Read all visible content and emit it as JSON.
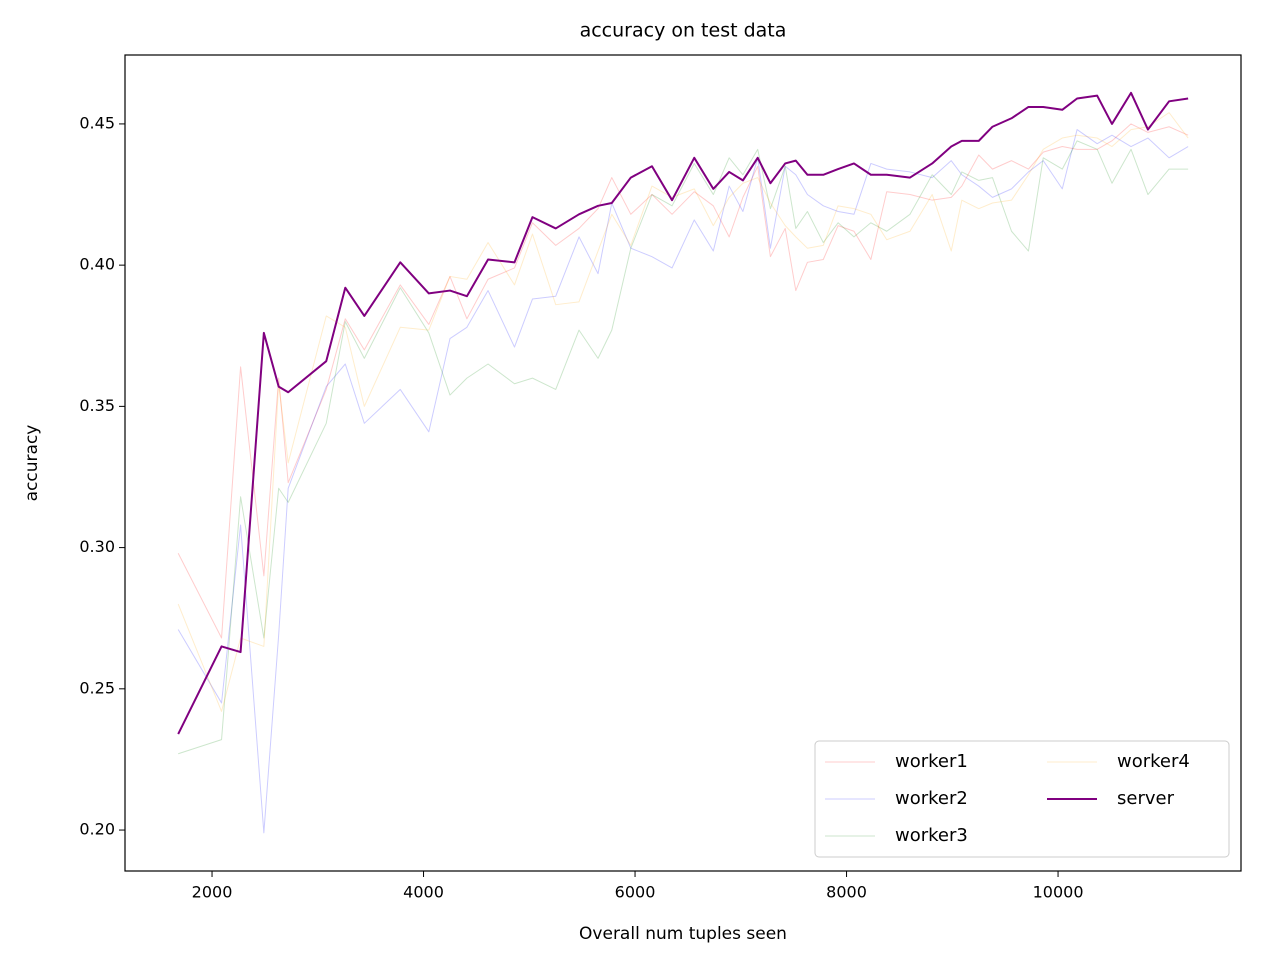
{
  "chart_data": {
    "type": "line",
    "title": "accuracy on test data",
    "x_label": "Overall num tuples seen",
    "y_label": "accuracy",
    "x": [
      1680,
      2090,
      2270,
      2490,
      2630,
      2720,
      3080,
      3260,
      3440,
      3780,
      4050,
      4250,
      4410,
      4610,
      4860,
      5030,
      5250,
      5470,
      5650,
      5780,
      5960,
      6160,
      6350,
      6560,
      6740,
      6890,
      7020,
      7160,
      7280,
      7420,
      7520,
      7630,
      7780,
      7920,
      8070,
      8230,
      8380,
      8600,
      8810,
      8990,
      9090,
      9250,
      9380,
      9560,
      9720,
      9860,
      10040,
      10180,
      10370,
      10510,
      10690,
      10850,
      11050,
      11230
    ],
    "series": [
      {
        "name": "worker1",
        "color": "#ff0000",
        "alpha": 0.2,
        "values": [
          0.298,
          0.268,
          0.364,
          0.29,
          0.36,
          0.323,
          0.356,
          0.381,
          0.37,
          0.393,
          0.379,
          0.396,
          0.381,
          0.395,
          0.399,
          0.415,
          0.407,
          0.413,
          0.42,
          0.431,
          0.418,
          0.425,
          0.418,
          0.426,
          0.421,
          0.41,
          0.424,
          0.435,
          0.403,
          0.413,
          0.391,
          0.401,
          0.402,
          0.414,
          0.412,
          0.402,
          0.426,
          0.425,
          0.423,
          0.424,
          0.428,
          0.439,
          0.434,
          0.437,
          0.434,
          0.44,
          0.442,
          0.441,
          0.441,
          0.444,
          0.45,
          0.447,
          0.449,
          0.446
        ]
      },
      {
        "name": "worker2",
        "color": "#0000ff",
        "alpha": 0.2,
        "values": [
          0.271,
          0.245,
          0.308,
          0.199,
          0.269,
          0.321,
          0.357,
          0.365,
          0.344,
          0.356,
          0.341,
          0.374,
          0.378,
          0.391,
          0.371,
          0.388,
          0.389,
          0.41,
          0.397,
          0.422,
          0.406,
          0.403,
          0.399,
          0.416,
          0.405,
          0.428,
          0.419,
          0.438,
          0.406,
          0.435,
          0.432,
          0.425,
          0.421,
          0.419,
          0.418,
          0.436,
          0.434,
          0.433,
          0.431,
          0.437,
          0.432,
          0.428,
          0.424,
          0.427,
          0.433,
          0.437,
          0.427,
          0.448,
          0.443,
          0.446,
          0.442,
          0.445,
          0.438,
          0.442
        ]
      },
      {
        "name": "worker3",
        "color": "#008000",
        "alpha": 0.2,
        "values": [
          0.227,
          0.232,
          0.318,
          0.268,
          0.321,
          0.316,
          0.344,
          0.38,
          0.367,
          0.392,
          0.376,
          0.354,
          0.36,
          0.365,
          0.358,
          0.36,
          0.356,
          0.377,
          0.367,
          0.377,
          0.406,
          0.425,
          0.421,
          0.436,
          0.425,
          0.438,
          0.432,
          0.441,
          0.42,
          0.435,
          0.413,
          0.419,
          0.408,
          0.415,
          0.41,
          0.415,
          0.412,
          0.418,
          0.432,
          0.425,
          0.433,
          0.43,
          0.431,
          0.412,
          0.405,
          0.438,
          0.434,
          0.444,
          0.441,
          0.429,
          0.441,
          0.425,
          0.434,
          0.434
        ]
      },
      {
        "name": "worker4",
        "color": "#ffa500",
        "alpha": 0.2,
        "values": [
          0.28,
          0.242,
          0.268,
          0.265,
          0.358,
          0.33,
          0.382,
          0.378,
          0.35,
          0.378,
          0.377,
          0.396,
          0.395,
          0.408,
          0.393,
          0.411,
          0.386,
          0.387,
          0.405,
          0.418,
          0.407,
          0.428,
          0.424,
          0.427,
          0.414,
          0.424,
          0.429,
          0.431,
          0.422,
          0.414,
          0.41,
          0.406,
          0.407,
          0.421,
          0.42,
          0.418,
          0.409,
          0.412,
          0.425,
          0.405,
          0.423,
          0.42,
          0.422,
          0.423,
          0.432,
          0.441,
          0.445,
          0.446,
          0.445,
          0.442,
          0.448,
          0.449,
          0.454,
          0.445
        ]
      },
      {
        "name": "server",
        "color": "#800080",
        "alpha": 1,
        "values": [
          0.234,
          0.265,
          0.263,
          0.376,
          0.357,
          0.355,
          0.366,
          0.392,
          0.382,
          0.401,
          0.39,
          0.391,
          0.389,
          0.402,
          0.401,
          0.417,
          0.413,
          0.418,
          0.421,
          0.422,
          0.431,
          0.435,
          0.423,
          0.438,
          0.427,
          0.433,
          0.43,
          0.438,
          0.429,
          0.436,
          0.437,
          0.432,
          0.432,
          0.434,
          0.436,
          0.432,
          0.432,
          0.431,
          0.436,
          0.442,
          0.444,
          0.444,
          0.449,
          0.452,
          0.456,
          0.456,
          0.455,
          0.459,
          0.46,
          0.45,
          0.461,
          0.448,
          0.458,
          0.459
        ]
      }
    ],
    "xlim": [
      1177,
      11730
    ],
    "ylim": [
      0.1855,
      0.4744
    ],
    "xticks": [
      2000,
      4000,
      6000,
      8000,
      10000
    ],
    "yticks": [
      {
        "value": 0.2,
        "label": "0.20"
      },
      0.25,
      {
        "value": 0.3,
        "label": "0.30"
      },
      0.35,
      {
        "value": 0.4,
        "label": "0.40"
      },
      0.45
    ],
    "legend": "lower right",
    "legend_columns": 2
  }
}
